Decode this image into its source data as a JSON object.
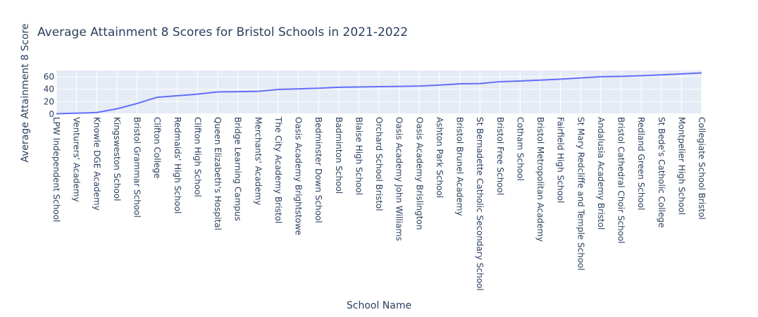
{
  "chart_data": {
    "type": "line",
    "title": "Average Attainment 8 Scores for Bristol Schools in 2021-2022",
    "xlabel": "School Name",
    "ylabel": "Average Attainment 8 Score",
    "ylim": [
      0,
      70
    ],
    "yticks": [
      0,
      20,
      40,
      60
    ],
    "grid": true,
    "line_color": "#636efa",
    "plot_bgcolor": "#e5ecf6",
    "categories": [
      "LPW Independent School",
      "Venturers' Academy",
      "Knowle DGE Academy",
      "Kingsweston School",
      "Bristol Grammar School",
      "Clifton College",
      "Redmaids' High School",
      "Clifton High School",
      "Queen Elizabeth's Hospital",
      "Bridge Learning Campus",
      "Merchants' Academy",
      "The City Academy Bristol",
      "Oasis Academy Brightstowe",
      "Bedminster Down School",
      "Badminton School",
      "Blaise High School",
      "Orchard School Bristol",
      "Oasis Academy John Williams",
      "Oasis Academy Brislington",
      "Ashton Park School",
      "Bristol Brunel Academy",
      "St Bernadette Catholic Secondary School",
      "Bristol Free School",
      "Cotham School",
      "Bristol Metropolitan Academy",
      "Fairfield High School",
      "St Mary Redcliffe and Temple School",
      "Andalusia Academy Bristol",
      "Bristol Cathedral Choir School",
      "Redland Green School",
      "St Bede's Catholic College",
      "Montpelier High School",
      "Collegiate School Bristol"
    ],
    "values": [
      0.5,
      1.5,
      2.5,
      8.5,
      17,
      27,
      29.5,
      32,
      35.5,
      36,
      36.5,
      39.5,
      40.5,
      41.5,
      43,
      43.5,
      44,
      44.5,
      45,
      46.5,
      48.5,
      49,
      52,
      53,
      54.5,
      56,
      58,
      60,
      60.5,
      61.5,
      63,
      64.5,
      66
    ]
  }
}
